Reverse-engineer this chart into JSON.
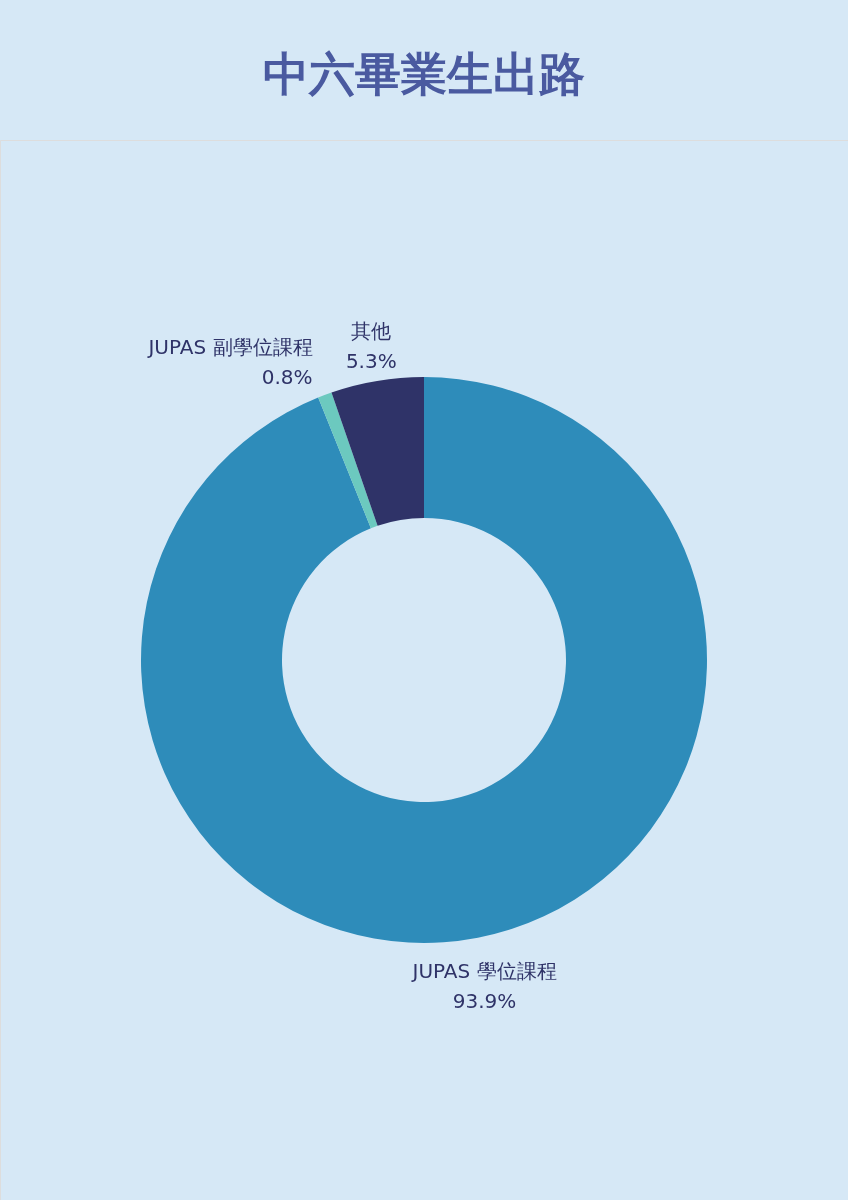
{
  "chart_data": {
    "type": "donut",
    "title": "中六畢業生出路",
    "categories": [
      "JUPAS 學位課程",
      "JUPAS 副學位課程",
      "其他"
    ],
    "values": [
      93.9,
      0.8,
      5.3
    ],
    "colors": [
      "#2e8cba",
      "#6cc9bf",
      "#2f3368"
    ],
    "value_labels": [
      "93.9%",
      "0.8%",
      "5.3%"
    ],
    "legend": false
  }
}
